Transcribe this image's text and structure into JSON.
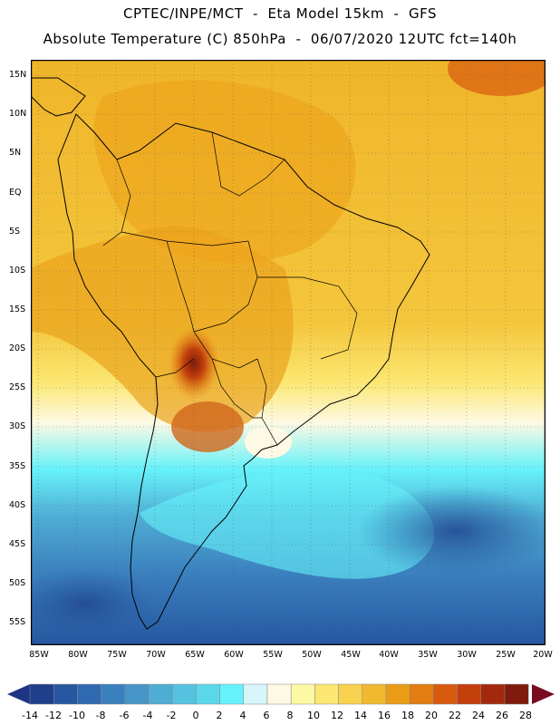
{
  "header": {
    "line1": "CPTEC/INPE/MCT  -  Eta Model 15km  -  GFS",
    "line2": "Absolute Temperature (C) 850hPa  -  06/07/2020 12UTC fct=140h"
  },
  "axes": {
    "lat_labels": [
      "15N",
      "10N",
      "5N",
      "EQ",
      "5S",
      "10S",
      "15S",
      "20S",
      "25S",
      "30S",
      "35S",
      "40S",
      "45S",
      "50S",
      "55S"
    ],
    "lon_labels": [
      "85W",
      "80W",
      "75W",
      "70W",
      "65W",
      "60W",
      "55W",
      "50W",
      "45W",
      "40W",
      "35W",
      "30W",
      "25W",
      "20W"
    ]
  },
  "colorbar": {
    "labels": [
      "-14",
      "-12",
      "-10",
      "-8",
      "-6",
      "-4",
      "-2",
      "0",
      "2",
      "4",
      "6",
      "8",
      "10",
      "12",
      "14",
      "16",
      "18",
      "20",
      "22",
      "24",
      "26",
      "28"
    ],
    "colors": [
      "#1e3f8c",
      "#2657a0",
      "#2f6ab0",
      "#3a7fbe",
      "#4595c8",
      "#4fadd4",
      "#55c2e0",
      "#5ad8ea",
      "#66f2fa",
      "#d6f6fb",
      "#fdf9e4",
      "#fdf8a4",
      "#fbe771",
      "#f8d14e",
      "#f1b930",
      "#ea9c17",
      "#e37c11",
      "#d75a0e",
      "#c33f0c",
      "#a3280c",
      "#7e1b0c"
    ],
    "low_arrow_color": "#1e3585",
    "high_arrow_color": "#7a0a20"
  },
  "map": {
    "ocean_colors": {
      "warm": "#f2bf3a",
      "cool": "#55bfe0",
      "cold": "#3a7fbe",
      "deep": "#2657a0"
    }
  }
}
